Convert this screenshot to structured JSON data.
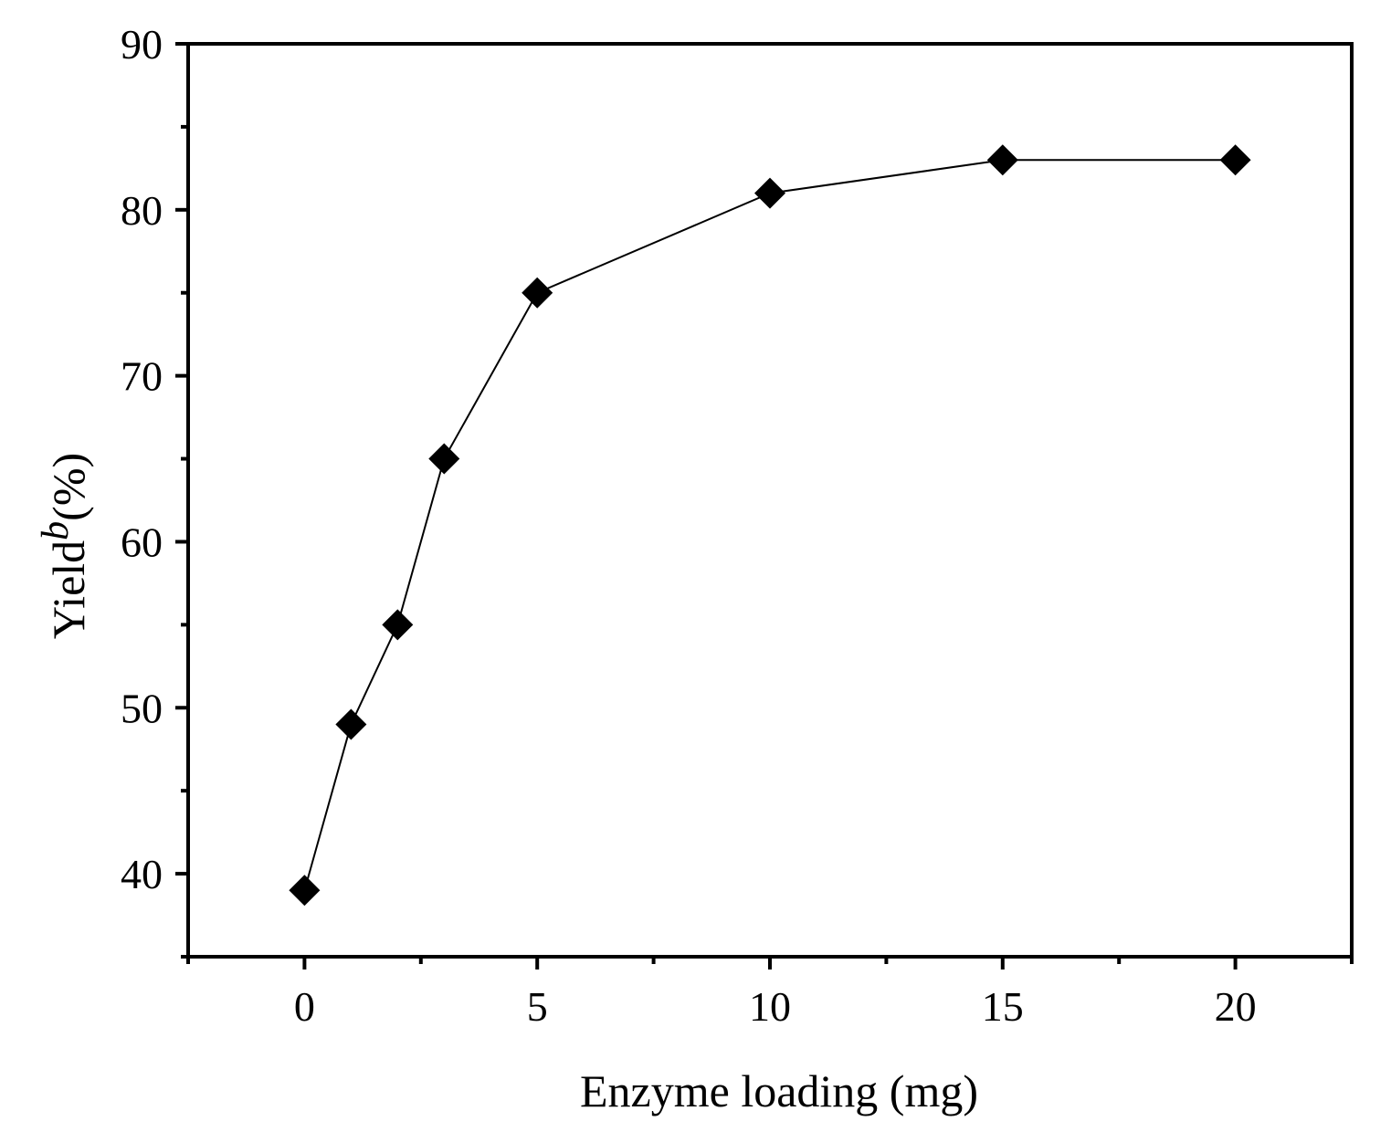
{
  "chart_data": {
    "type": "line",
    "xlabel": "Enzyme loading (mg)",
    "ylabel_main": "Yield",
    "ylabel_superscript": "b",
    "ylabel_unit": "(%)",
    "xlim": [
      -2.5,
      22.5
    ],
    "ylim": [
      35,
      90
    ],
    "x_ticks": [
      0,
      5,
      10,
      15,
      20
    ],
    "x_minor_ticks": [
      -2.5,
      2.5,
      7.5,
      12.5,
      17.5,
      22.5
    ],
    "y_ticks": [
      40,
      50,
      60,
      70,
      80,
      90
    ],
    "y_minor_ticks": [
      35,
      45,
      55,
      65,
      75,
      85
    ],
    "grid": false,
    "marker": "diamond",
    "series": [
      {
        "x": [
          0,
          1,
          2,
          3,
          5,
          10,
          15,
          20
        ],
        "values": [
          39,
          49,
          55,
          65,
          75,
          81,
          83,
          83
        ]
      }
    ],
    "colors": {
      "line": "#000000",
      "marker": "#000000",
      "axis": "#000000"
    }
  }
}
